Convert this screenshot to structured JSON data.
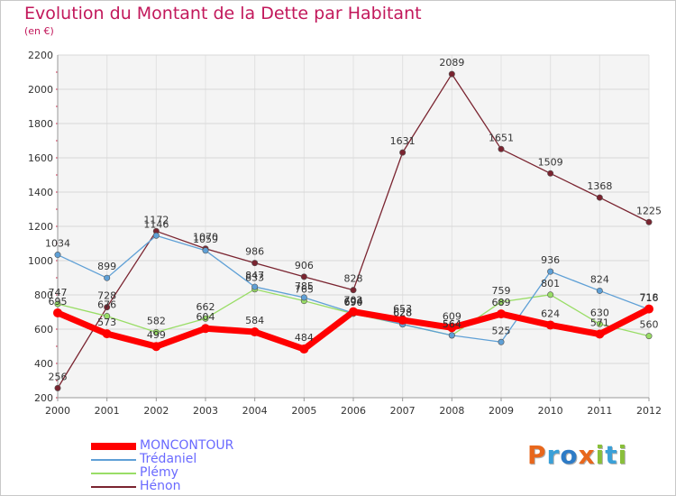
{
  "title": "Evolution du Montant de la Dette par Habitant",
  "subtitle": "(en €)",
  "logo": {
    "text": "Proxiti",
    "letters": [
      {
        "char": "P",
        "color": "#e8671c"
      },
      {
        "char": "r",
        "color": "#3aa0d8"
      },
      {
        "char": "o",
        "color": "#2e7bc6"
      },
      {
        "char": "x",
        "color": "#e8671c"
      },
      {
        "char": "i",
        "color": "#89bf3a"
      },
      {
        "char": "t",
        "color": "#3aa0d8"
      },
      {
        "char": "i",
        "color": "#89bf3a"
      }
    ]
  },
  "chart_data": {
    "type": "line",
    "title": "Evolution du Montant de la Dette par Habitant",
    "ylabel": "(en €)",
    "xlabel": "",
    "x": [
      "2000",
      "2001",
      "2002",
      "2003",
      "2004",
      "2005",
      "2006",
      "2007",
      "2008",
      "2009",
      "2010",
      "2011",
      "2012"
    ],
    "ylim": [
      200,
      2200
    ],
    "yticks": [
      200,
      400,
      600,
      800,
      1000,
      1200,
      1400,
      1600,
      1800,
      2000,
      2200
    ],
    "grid": true,
    "legend_position": "bottom-left",
    "series": [
      {
        "name": "MONCONTOUR",
        "color": "#ff0000",
        "values": [
          695,
          573,
          499,
          604,
          584,
          484,
          702,
          653,
          609,
          689,
          624,
          571,
          718
        ]
      },
      {
        "name": "Trédaniel",
        "color": "#5fa0d6",
        "values": [
          1034,
          899,
          1146,
          1059,
          847,
          785,
          694,
          628,
          564,
          525,
          936,
          824,
          716
        ]
      },
      {
        "name": "Plémy",
        "color": "#99dd66",
        "values": [
          747,
          676,
          582,
          662,
          833,
          765,
          690,
          628,
          564,
          759,
          801,
          630,
          560
        ]
      },
      {
        "name": "Hénon",
        "color": "#7a2430",
        "values": [
          256,
          728,
          1172,
          1070,
          986,
          906,
          828,
          1631,
          2089,
          1651,
          1509,
          1368,
          1225
        ]
      }
    ]
  }
}
